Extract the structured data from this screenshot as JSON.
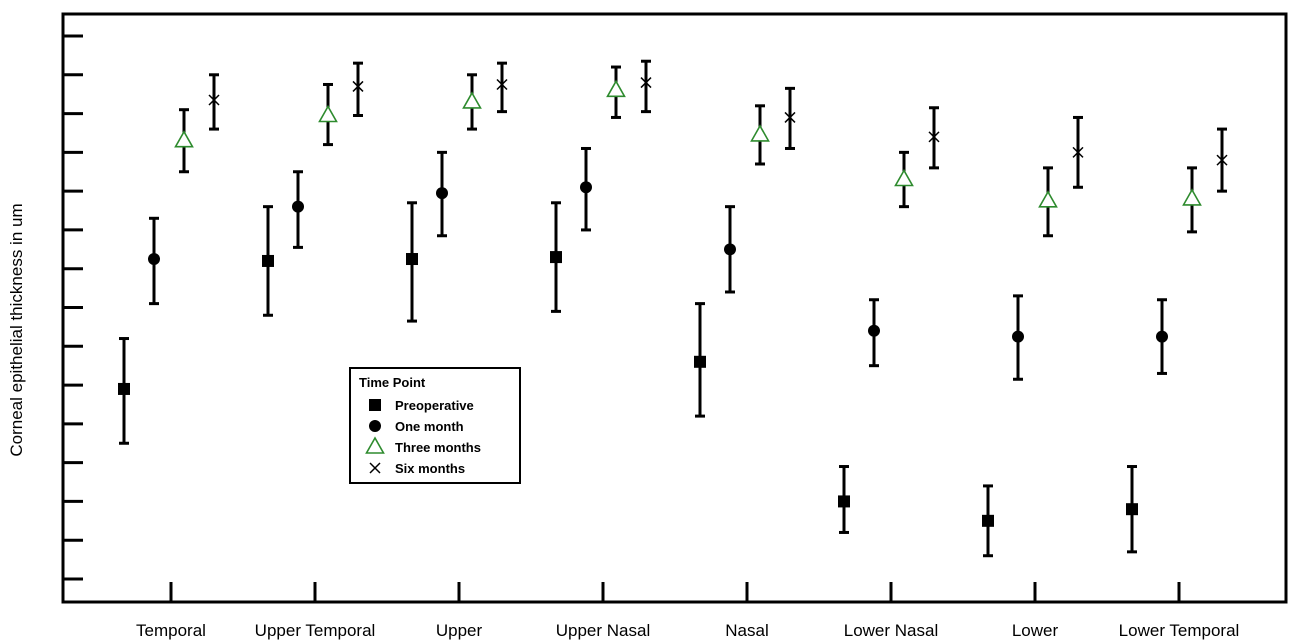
{
  "chart_data": {
    "type": "scatter",
    "ylabel": "Corneal epithelial thickness in um",
    "xlabel": "",
    "ylim": [
      0,
      14
    ],
    "ytick_count": 15,
    "grid": false,
    "legend_title": "Time Point",
    "legend_position": "center",
    "categories": [
      "Temporal",
      "Upper Temporal",
      "Upper",
      "Upper Nasal",
      "Nasal",
      "Lower Nasal",
      "Lower",
      "Lower Temporal"
    ],
    "series": [
      {
        "name": "Preoperative",
        "marker": "square",
        "color": "#000000",
        "values": [
          4.9,
          8.2,
          8.25,
          8.3,
          5.6,
          2.0,
          1.5,
          1.8
        ],
        "err_low": [
          3.5,
          6.8,
          6.65,
          6.9,
          4.2,
          1.2,
          0.6,
          0.7
        ],
        "err_high": [
          6.2,
          9.6,
          9.7,
          9.7,
          7.1,
          2.9,
          2.4,
          2.9
        ]
      },
      {
        "name": "One month",
        "marker": "circle",
        "color": "#000000",
        "values": [
          8.25,
          9.6,
          9.95,
          10.1,
          8.5,
          6.4,
          6.25,
          6.25
        ],
        "err_low": [
          7.1,
          8.55,
          8.85,
          9.0,
          7.4,
          5.5,
          5.15,
          5.3
        ],
        "err_high": [
          9.3,
          10.5,
          11.0,
          11.1,
          9.6,
          7.2,
          7.3,
          7.2
        ]
      },
      {
        "name": "Three months",
        "marker": "triangle",
        "color": "#2e8b2e",
        "values": [
          11.3,
          11.95,
          12.3,
          12.6,
          11.45,
          10.3,
          9.75,
          9.8
        ],
        "err_low": [
          10.5,
          11.2,
          11.6,
          11.9,
          10.7,
          9.6,
          8.85,
          8.95
        ],
        "err_high": [
          12.1,
          12.75,
          13.0,
          13.2,
          12.2,
          11.0,
          10.6,
          10.6
        ]
      },
      {
        "name": "Six months",
        "marker": "x",
        "color": "#000000",
        "values": [
          12.35,
          12.7,
          12.75,
          12.8,
          11.9,
          11.4,
          11.0,
          10.8
        ],
        "err_low": [
          11.6,
          11.95,
          12.05,
          12.05,
          11.1,
          10.6,
          10.1,
          10.0
        ],
        "err_high": [
          13.0,
          13.3,
          13.3,
          13.35,
          12.65,
          12.15,
          11.9,
          11.6
        ]
      }
    ]
  }
}
